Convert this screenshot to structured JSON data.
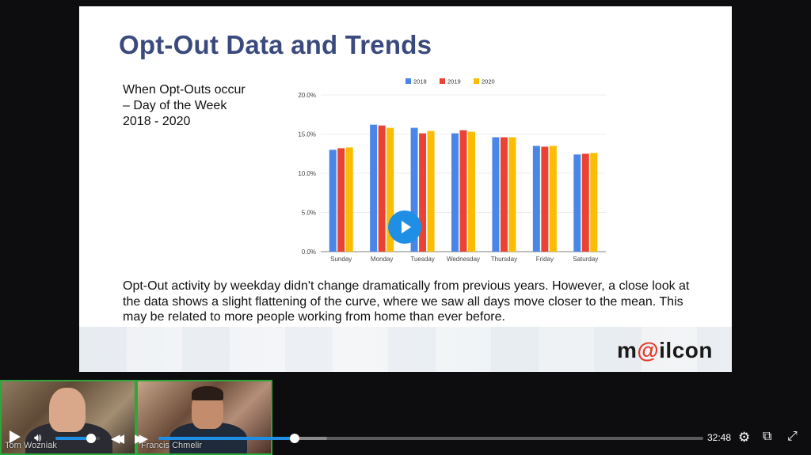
{
  "slide": {
    "title": "Opt-Out Data and Trends",
    "side_caption": "When Opt-Outs occur – Day of the Week 2018 - 2020",
    "body_text": "Opt-Out activity by weekday didn't change dramatically from previous years. However, a close look at the data shows a slight flattening of the curve, where we saw all days move closer to the mean. This may be related to more people working from home than ever before.",
    "brand": {
      "pre": "m",
      "at": "@",
      "post": "ilcon"
    }
  },
  "chart_data": {
    "type": "bar",
    "categories": [
      "Sunday",
      "Monday",
      "Tuesday",
      "Wednesday",
      "Thursday",
      "Friday",
      "Saturday"
    ],
    "series": [
      {
        "name": "2018",
        "color": "#4a86e8",
        "values": [
          13.0,
          16.2,
          15.8,
          15.1,
          14.6,
          13.5,
          12.4
        ]
      },
      {
        "name": "2019",
        "color": "#ea4335",
        "values": [
          13.2,
          16.1,
          15.1,
          15.5,
          14.6,
          13.4,
          12.5
        ]
      },
      {
        "name": "2020",
        "color": "#fbbc04",
        "values": [
          13.3,
          15.8,
          15.4,
          15.3,
          14.6,
          13.5,
          12.6
        ]
      }
    ],
    "yticks": [
      "0.0%",
      "5.0%",
      "10.0%",
      "15.0%",
      "20.0%"
    ],
    "ylim": [
      0,
      20
    ],
    "legend_position": "top",
    "grid": true
  },
  "participants": [
    {
      "name": "Tom Wozniak"
    },
    {
      "name": "Francis Chmelir"
    }
  ],
  "player": {
    "time": "32:48",
    "volume": 0.8,
    "progress": 0.25,
    "buffered": 0.31
  },
  "icons": {
    "play": "play-icon",
    "volume": "volume-icon",
    "rewind": "rewind-icon",
    "forward": "forward-icon",
    "settings": "gear-icon",
    "popout": "popout-icon",
    "fullscreen": "fullscreen-icon",
    "center_play": "play-circle-icon"
  }
}
